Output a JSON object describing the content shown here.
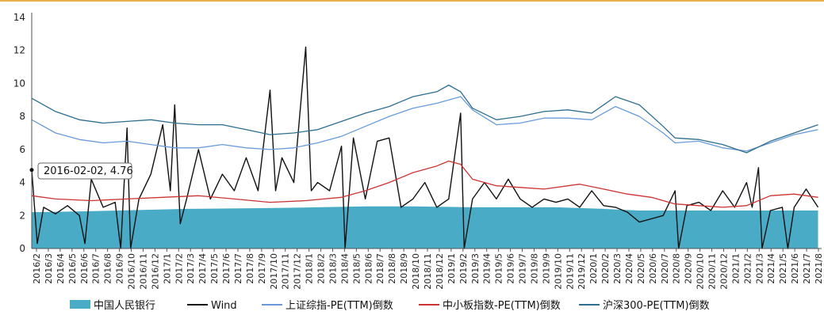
{
  "chart_data": {
    "type": "line",
    "title": "",
    "xlabel": "",
    "ylabel": "",
    "ylim": [
      0,
      14
    ],
    "yticks": [
      0,
      2,
      4,
      6,
      8,
      10,
      12,
      14
    ],
    "grid": false,
    "legend_position": "bottom",
    "x_start": "2016-02",
    "x_end": "2021-08",
    "x_ticks": [
      "2016/2",
      "2016/3",
      "2016/4",
      "2016/5",
      "2016/6",
      "2016/7",
      "2016/8",
      "2016/9",
      "2016/10",
      "2016/11",
      "2016/12",
      "2017/1",
      "2017/2",
      "2017/3",
      "2017/4",
      "2017/5",
      "2017/6",
      "2017/7",
      "2017/8",
      "2017/9",
      "2017/10",
      "2017/11",
      "2017/12",
      "2018/1",
      "2018/2",
      "2018/3",
      "2018/4",
      "2018/5",
      "2018/6",
      "2018/7",
      "2018/8",
      "2018/9",
      "2018/10",
      "2018/11",
      "2018/12",
      "2019/1",
      "2019/2",
      "2019/3",
      "2019/4",
      "2019/5",
      "2019/6",
      "2019/7",
      "2019/8",
      "2019/9",
      "2019/10",
      "2019/11",
      "2019/12",
      "2020/1",
      "2020/2",
      "2020/3",
      "2020/4",
      "2020/5",
      "2020/6",
      "2020/7",
      "2020/8",
      "2020/9",
      "2020/10",
      "2020/11",
      "2020/12",
      "2021/1",
      "2021/2",
      "2021/3",
      "2021/4",
      "2021/5",
      "2021/6",
      "2021/7",
      "2021/8"
    ],
    "annotation": "2016-02-02, 4.76",
    "series": [
      {
        "name": "中国人民银行",
        "type": "area",
        "color": "#4aabc6",
        "points": [
          [
            "2016-02",
            2.2
          ],
          [
            "2016-06",
            2.25
          ],
          [
            "2016-12",
            2.35
          ],
          [
            "2017-03",
            2.4
          ],
          [
            "2017-10",
            2.45
          ],
          [
            "2018-02",
            2.5
          ],
          [
            "2018-06",
            2.55
          ],
          [
            "2018-10",
            2.55
          ],
          [
            "2019-03",
            2.5
          ],
          [
            "2019-10",
            2.5
          ],
          [
            "2020-02",
            2.4
          ],
          [
            "2020-05",
            2.3
          ],
          [
            "2020-10",
            2.3
          ],
          [
            "2021-03",
            2.3
          ],
          [
            "2021-08",
            2.3
          ]
        ]
      },
      {
        "name": "Wind",
        "type": "line",
        "color": "#111111",
        "points": [
          [
            "2016-02",
            4.76
          ],
          [
            "2016-02-15",
            0.3
          ],
          [
            "2016-03",
            2.5
          ],
          [
            "2016-04",
            2.1
          ],
          [
            "2016-05",
            2.6
          ],
          [
            "2016-06",
            2.0
          ],
          [
            "2016-06-15",
            0.3
          ],
          [
            "2016-07",
            4.2
          ],
          [
            "2016-08",
            2.5
          ],
          [
            "2016-09",
            2.8
          ],
          [
            "2016-09-15",
            0.0
          ],
          [
            "2016-10",
            7.3
          ],
          [
            "2016-10-10",
            0.0
          ],
          [
            "2016-11",
            3.0
          ],
          [
            "2016-12",
            4.5
          ],
          [
            "2017-01",
            7.5
          ],
          [
            "2017-01-20",
            3.5
          ],
          [
            "2017-02",
            8.7
          ],
          [
            "2017-02-15",
            1.5
          ],
          [
            "2017-03",
            3.0
          ],
          [
            "2017-04",
            6.0
          ],
          [
            "2017-05",
            3.0
          ],
          [
            "2017-06",
            4.5
          ],
          [
            "2017-07",
            3.5
          ],
          [
            "2017-08",
            5.5
          ],
          [
            "2017-09",
            3.5
          ],
          [
            "2017-10",
            9.6
          ],
          [
            "2017-10-15",
            3.5
          ],
          [
            "2017-11",
            5.5
          ],
          [
            "2017-12",
            4.0
          ],
          [
            "2018-01",
            12.2
          ],
          [
            "2018-01-15",
            3.5
          ],
          [
            "2018-02",
            4.0
          ],
          [
            "2018-03",
            3.5
          ],
          [
            "2018-04",
            6.2
          ],
          [
            "2018-04-10",
            0.0
          ],
          [
            "2018-05",
            6.7
          ],
          [
            "2018-06",
            3.0
          ],
          [
            "2018-07",
            6.5
          ],
          [
            "2018-08",
            6.7
          ],
          [
            "2018-09",
            2.5
          ],
          [
            "2018-10",
            3.0
          ],
          [
            "2018-11",
            4.0
          ],
          [
            "2018-12",
            2.5
          ],
          [
            "2019-01",
            3.0
          ],
          [
            "2019-02",
            8.2
          ],
          [
            "2019-02-10",
            0.0
          ],
          [
            "2019-03",
            3.0
          ],
          [
            "2019-04",
            4.0
          ],
          [
            "2019-05",
            3.0
          ],
          [
            "2019-06",
            4.2
          ],
          [
            "2019-07",
            3.0
          ],
          [
            "2019-08",
            2.5
          ],
          [
            "2019-09",
            3.0
          ],
          [
            "2019-10",
            2.8
          ],
          [
            "2019-11",
            3.0
          ],
          [
            "2019-12",
            2.5
          ],
          [
            "2020-01",
            3.5
          ],
          [
            "2020-02",
            2.6
          ],
          [
            "2020-03",
            2.5
          ],
          [
            "2020-04",
            2.2
          ],
          [
            "2020-05",
            1.6
          ],
          [
            "2020-06",
            1.8
          ],
          [
            "2020-07",
            2.0
          ],
          [
            "2020-08",
            3.5
          ],
          [
            "2020-08-10",
            0.0
          ],
          [
            "2020-09",
            2.6
          ],
          [
            "2020-10",
            2.8
          ],
          [
            "2020-11",
            2.3
          ],
          [
            "2020-12",
            3.5
          ],
          [
            "2021-01",
            2.5
          ],
          [
            "2021-02",
            4.0
          ],
          [
            "2021-02-15",
            2.5
          ],
          [
            "2021-03",
            4.9
          ],
          [
            "2021-03-10",
            0.0
          ],
          [
            "2021-04",
            2.3
          ],
          [
            "2021-05",
            2.5
          ],
          [
            "2021-05-15",
            0.0
          ],
          [
            "2021-06",
            2.5
          ],
          [
            "2021-07",
            3.6
          ],
          [
            "2021-08",
            2.5
          ]
        ]
      },
      {
        "name": "上证综指-PE(TTM)倒数",
        "type": "line",
        "color": "#6a9bd8",
        "points": [
          [
            "2016-02",
            7.8
          ],
          [
            "2016-04",
            7.0
          ],
          [
            "2016-06",
            6.6
          ],
          [
            "2016-08",
            6.4
          ],
          [
            "2016-10",
            6.5
          ],
          [
            "2016-12",
            6.3
          ],
          [
            "2017-02",
            6.1
          ],
          [
            "2017-04",
            6.1
          ],
          [
            "2017-06",
            6.3
          ],
          [
            "2017-08",
            6.1
          ],
          [
            "2017-10",
            6.0
          ],
          [
            "2017-12",
            6.1
          ],
          [
            "2018-02",
            6.4
          ],
          [
            "2018-04",
            6.8
          ],
          [
            "2018-06",
            7.4
          ],
          [
            "2018-08",
            8.0
          ],
          [
            "2018-10",
            8.5
          ],
          [
            "2018-12",
            8.8
          ],
          [
            "2019-02",
            9.2
          ],
          [
            "2019-03",
            8.4
          ],
          [
            "2019-05",
            7.5
          ],
          [
            "2019-07",
            7.6
          ],
          [
            "2019-09",
            7.9
          ],
          [
            "2019-11",
            7.9
          ],
          [
            "2020-01",
            7.8
          ],
          [
            "2020-03",
            8.6
          ],
          [
            "2020-05",
            8.0
          ],
          [
            "2020-07",
            7.0
          ],
          [
            "2020-08",
            6.4
          ],
          [
            "2020-10",
            6.5
          ],
          [
            "2020-12",
            6.1
          ],
          [
            "2021-02",
            5.9
          ],
          [
            "2021-04",
            6.4
          ],
          [
            "2021-06",
            6.9
          ],
          [
            "2021-08",
            7.2
          ]
        ]
      },
      {
        "name": "中小板指数-PE(TTM)倒数",
        "type": "line",
        "color": "#cc3333",
        "points": [
          [
            "2016-02",
            3.2
          ],
          [
            "2016-04",
            3.0
          ],
          [
            "2016-07",
            2.9
          ],
          [
            "2016-10",
            3.0
          ],
          [
            "2017-01",
            3.1
          ],
          [
            "2017-04",
            3.2
          ],
          [
            "2017-07",
            3.0
          ],
          [
            "2017-10",
            2.8
          ],
          [
            "2018-01",
            2.9
          ],
          [
            "2018-04",
            3.1
          ],
          [
            "2018-06",
            3.5
          ],
          [
            "2018-08",
            4.0
          ],
          [
            "2018-10",
            4.6
          ],
          [
            "2018-12",
            5.0
          ],
          [
            "2019-01",
            5.3
          ],
          [
            "2019-02",
            5.1
          ],
          [
            "2019-03",
            4.2
          ],
          [
            "2019-05",
            3.8
          ],
          [
            "2019-07",
            3.7
          ],
          [
            "2019-09",
            3.6
          ],
          [
            "2019-12",
            3.9
          ],
          [
            "2020-02",
            3.6
          ],
          [
            "2020-04",
            3.3
          ],
          [
            "2020-06",
            3.1
          ],
          [
            "2020-08",
            2.7
          ],
          [
            "2020-10",
            2.6
          ],
          [
            "2020-12",
            2.5
          ],
          [
            "2021-02",
            2.6
          ],
          [
            "2021-04",
            3.2
          ],
          [
            "2021-06",
            3.3
          ],
          [
            "2021-08",
            3.1
          ]
        ]
      },
      {
        "name": "沪深300-PE(TTM)倒数",
        "type": "line",
        "color": "#2e6e8e",
        "points": [
          [
            "2016-02",
            9.1
          ],
          [
            "2016-04",
            8.3
          ],
          [
            "2016-06",
            7.8
          ],
          [
            "2016-08",
            7.6
          ],
          [
            "2016-10",
            7.7
          ],
          [
            "2016-12",
            7.8
          ],
          [
            "2017-02",
            7.6
          ],
          [
            "2017-04",
            7.5
          ],
          [
            "2017-06",
            7.5
          ],
          [
            "2017-08",
            7.2
          ],
          [
            "2017-10",
            6.9
          ],
          [
            "2017-12",
            7.0
          ],
          [
            "2018-02",
            7.2
          ],
          [
            "2018-04",
            7.7
          ],
          [
            "2018-06",
            8.2
          ],
          [
            "2018-08",
            8.6
          ],
          [
            "2018-10",
            9.2
          ],
          [
            "2018-12",
            9.5
          ],
          [
            "2019-01",
            9.9
          ],
          [
            "2019-02",
            9.5
          ],
          [
            "2019-03",
            8.5
          ],
          [
            "2019-05",
            7.8
          ],
          [
            "2019-07",
            8.0
          ],
          [
            "2019-09",
            8.3
          ],
          [
            "2019-11",
            8.4
          ],
          [
            "2020-01",
            8.2
          ],
          [
            "2020-03",
            9.2
          ],
          [
            "2020-05",
            8.7
          ],
          [
            "2020-07",
            7.4
          ],
          [
            "2020-08",
            6.7
          ],
          [
            "2020-10",
            6.6
          ],
          [
            "2020-12",
            6.3
          ],
          [
            "2021-02",
            5.8
          ],
          [
            "2021-04",
            6.5
          ],
          [
            "2021-06",
            7.0
          ],
          [
            "2021-08",
            7.5
          ]
        ]
      }
    ]
  }
}
